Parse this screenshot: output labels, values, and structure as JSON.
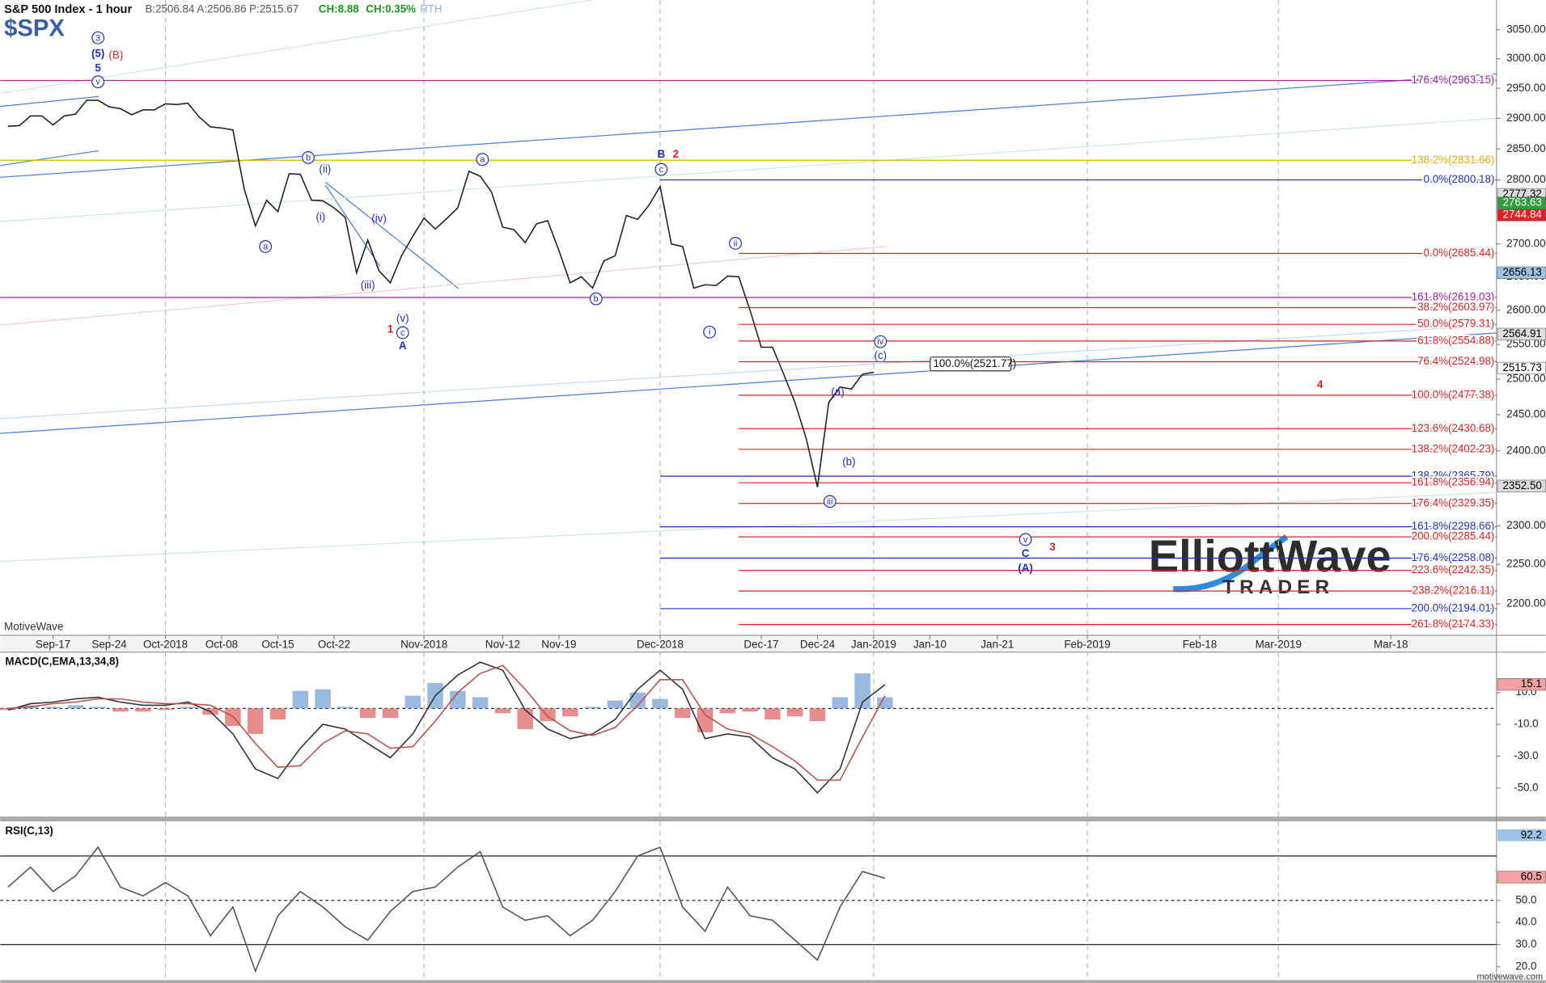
{
  "header": {
    "title": "S&P 500 Index - 1 hour",
    "quote": "B:2506.84 A:2506.86 P:2515.67",
    "change": "CH:8.88",
    "change_pct": "CH:0.35%",
    "session": "RTH",
    "symbol": "$SPX",
    "watermark": "MotiveWave",
    "logo_main": "ElliottWave",
    "logo_sub": "TRADER",
    "footer": "motivewave.com"
  },
  "chart_data": [
    {
      "type": "line",
      "log": true,
      "x": [
        -4,
        -3,
        -2,
        -1,
        0,
        1,
        2,
        3,
        4,
        5,
        6,
        7,
        8,
        9,
        10,
        11,
        12,
        13,
        14,
        15,
        16,
        17,
        18,
        19,
        20,
        21,
        22,
        23,
        24,
        25,
        26,
        27,
        28,
        29,
        30,
        31,
        32,
        33,
        34,
        35,
        36,
        37,
        38,
        39,
        40,
        41,
        42,
        43,
        44,
        45,
        46,
        47,
        48,
        49,
        50,
        51,
        52,
        53,
        54,
        55,
        56,
        57,
        58,
        59,
        60,
        61,
        62,
        63,
        64,
        65,
        66,
        67,
        68,
        69,
        70,
        71,
        72,
        73
      ],
      "series": [
        {
          "color": "#222222",
          "values": [
            2887,
            2888,
            2904,
            2904,
            2889,
            2904,
            2907,
            2930,
            2930,
            2919,
            2916,
            2906,
            2914,
            2914,
            2924,
            2923,
            2925,
            2902,
            2886,
            2884,
            2881,
            2786,
            2728,
            2768,
            2750,
            2810,
            2809,
            2768,
            2767,
            2756,
            2741,
            2656,
            2706,
            2659,
            2641,
            2682,
            2712,
            2740,
            2723,
            2739,
            2756,
            2814,
            2806,
            2781,
            2726,
            2722,
            2702,
            2731,
            2736,
            2690,
            2641,
            2650,
            2633,
            2674,
            2682,
            2744,
            2738,
            2760,
            2790,
            2700,
            2696,
            2633,
            2638,
            2637,
            2651,
            2650,
            2600,
            2546,
            2546,
            2507,
            2467,
            2417,
            2351,
            2467,
            2489,
            2486,
            2507,
            2510
          ]
        }
      ],
      "xlim": [
        -4.7,
        128.4
      ],
      "xticks": [
        {
          "value": 0,
          "label": "Sep-17"
        },
        {
          "value": 5,
          "label": "Sep-24"
        },
        {
          "value": 10,
          "label": "Oct-2018"
        },
        {
          "value": 15,
          "label": "Oct-08"
        },
        {
          "value": 20,
          "label": "Oct-15"
        },
        {
          "value": 25,
          "label": "Oct-22"
        },
        {
          "value": 33,
          "label": "Nov-2018"
        },
        {
          "value": 40,
          "label": "Nov-12"
        },
        {
          "value": 45,
          "label": "Nov-19"
        },
        {
          "value": 54,
          "label": "Dec-2018"
        },
        {
          "value": 63,
          "label": "Dec-17"
        },
        {
          "value": 68,
          "label": "Dec-24"
        },
        {
          "value": 73,
          "label": "Jan-2019"
        },
        {
          "value": 78,
          "label": "Jan-10"
        },
        {
          "value": 84,
          "label": "Jan-21"
        },
        {
          "value": 92,
          "label": "Feb-2019"
        },
        {
          "value": 102,
          "label": "Feb-18"
        },
        {
          "value": 109,
          "label": "Mar-2019"
        },
        {
          "value": 119,
          "label": "Mar-18"
        }
      ],
      "xgrid": [
        10,
        33,
        54,
        73,
        92,
        109
      ],
      "ylim": [
        2161,
        3102
      ],
      "yticks": [
        {
          "value": 2200,
          "label": "2200.00"
        },
        {
          "value": 2250,
          "label": "2250.00"
        },
        {
          "value": 2300,
          "label": "2300.00"
        },
        {
          "value": 2350,
          "label": "2350.00"
        },
        {
          "value": 2400,
          "label": "2400.00"
        },
        {
          "value": 2450,
          "label": "2450.00"
        },
        {
          "value": 2500,
          "label": "2500.00"
        },
        {
          "value": 2550,
          "label": "2550.00"
        },
        {
          "value": 2600,
          "label": "2600.00"
        },
        {
          "value": 2650,
          "label": "2650.00"
        },
        {
          "value": 2700,
          "label": "2700.00"
        },
        {
          "value": 2750,
          "label": "2750.00"
        },
        {
          "value": 2800,
          "label": "2800.00"
        },
        {
          "value": 2850,
          "label": "2850.00"
        },
        {
          "value": 2900,
          "label": "2900.00"
        },
        {
          "value": 2950,
          "label": "2950.00"
        },
        {
          "value": 3000,
          "label": "3000.00"
        },
        {
          "value": 3050,
          "label": "3050.00"
        }
      ],
      "levels": [
        {
          "label": "176.4%(2963.15)",
          "value": 2963.15,
          "color": "#a020a0"
        },
        {
          "label": "138.2%(2831.66)",
          "value": 2831.66,
          "color": "#e0b000"
        },
        {
          "label": "0.0%(2800.18)",
          "value": 2800.18,
          "color": "#1f2fc0",
          "x0": 54
        },
        {
          "label": "0.0%(2685.44)",
          "value": 2685.44,
          "color": "#e02020",
          "x0": 61
        },
        {
          "label": "161.8%(2619.03)",
          "value": 2619.03,
          "color": "#a020a0"
        },
        {
          "label": "38.2%(2603.97)",
          "value": 2603.97,
          "color": "#e02020",
          "x0": 61
        },
        {
          "label": "50.0%(2579.31)",
          "value": 2579.31,
          "color": "#e02020",
          "x0": 61
        },
        {
          "label": "61.8%(2554.88)",
          "value": 2554.88,
          "color": "#e02020",
          "x0": 61
        },
        {
          "label": "76.4%(2524.98)",
          "value": 2524.98,
          "color": "#e02020",
          "x0": 61
        },
        {
          "label": "100.0%(2477.38)",
          "value": 2477.38,
          "color": "#e02020",
          "x0": 61
        },
        {
          "label": "123.6%(2430.68)",
          "value": 2430.68,
          "color": "#e02020",
          "x0": 61
        },
        {
          "label": "138.2%(2402.23)",
          "value": 2402.23,
          "color": "#e02020",
          "x0": 61
        },
        {
          "label": "138.2%(2365.79)",
          "value": 2365.79,
          "color": "#1f2fc0",
          "x0": 54
        },
        {
          "label": "161.8%(2356.94)",
          "value": 2356.94,
          "color": "#e02020",
          "x0": 61
        },
        {
          "label": "176.4%(2329.35)",
          "value": 2329.35,
          "color": "#e02020",
          "x0": 61
        },
        {
          "label": "161.8%(2298.66)",
          "value": 2298.66,
          "color": "#1f2fc0",
          "x0": 54
        },
        {
          "label": "200.0%(2285.44)",
          "value": 2285.44,
          "color": "#e02020",
          "x0": 61
        },
        {
          "label": "176.4%(2258.08)",
          "value": 2258.08,
          "color": "#1f2fc0",
          "x0": 54
        },
        {
          "label": "223.6%(2242.35)",
          "value": 2242.35,
          "color": "#e02020",
          "x0": 61
        },
        {
          "label": "238.2%(2216.11)",
          "value": 2216.11,
          "color": "#e02020",
          "x0": 61
        },
        {
          "label": "200.0%(2194.01)",
          "value": 2194.01,
          "color": "#1f2fc0",
          "x0": 54
        },
        {
          "label": "261.8%(2174.33)",
          "value": 2174.33,
          "color": "#e02020",
          "x0": 61
        }
      ],
      "callout": {
        "label": "100.0%(2521.77)",
        "value": 2521.77,
        "x": 78.2
      },
      "annotations": [
        {
          "text": "3",
          "x": 4,
          "y": 3036,
          "color": "#1f2fc0",
          "circled": true
        },
        {
          "text": "(5)",
          "x": 4,
          "y": 3009,
          "color": "#1f2fc0",
          "bold": true
        },
        {
          "text": "(B)",
          "x": 5.6,
          "y": 3006,
          "color": "#e02020"
        },
        {
          "text": "5",
          "x": 4,
          "y": 2984,
          "color": "#1f2fc0",
          "bold": true
        },
        {
          "text": "v",
          "x": 4,
          "y": 2961,
          "color": "#1f2fc0",
          "circled": true
        },
        {
          "text": "a",
          "x": 18.9,
          "y": 2696,
          "color": "#1f2fc0",
          "circled": true
        },
        {
          "text": "b",
          "x": 22.7,
          "y": 2836,
          "color": "#1f2fc0",
          "circled": true
        },
        {
          "text": "(ii)",
          "x": 24.2,
          "y": 2817,
          "color": "#1f2fc0"
        },
        {
          "text": "(i)",
          "x": 23.8,
          "y": 2742,
          "color": "#1f2fc0"
        },
        {
          "text": "(iv)",
          "x": 29,
          "y": 2739,
          "color": "#1f2fc0"
        },
        {
          "text": "(iii)",
          "x": 28,
          "y": 2637,
          "color": "#1f2fc0"
        },
        {
          "text": "(v)",
          "x": 31.1,
          "y": 2588,
          "color": "#1f2fc0"
        },
        {
          "text": "c",
          "x": 31.1,
          "y": 2567,
          "color": "#1f2fc0",
          "circled": true
        },
        {
          "text": "A",
          "x": 31.1,
          "y": 2548,
          "color": "#1f2fc0",
          "bold": true
        },
        {
          "text": "1",
          "x": 30,
          "y": 2572,
          "color": "#e02020",
          "bold": true
        },
        {
          "text": "a",
          "x": 38.2,
          "y": 2833,
          "color": "#1f2fc0",
          "circled": true
        },
        {
          "text": "b",
          "x": 48.3,
          "y": 2617,
          "color": "#1f2fc0",
          "circled": true
        },
        {
          "text": "B",
          "x": 54.1,
          "y": 2841,
          "color": "#1f2fc0",
          "bold": true
        },
        {
          "text": "2",
          "x": 55.4,
          "y": 2841,
          "color": "#e02020",
          "bold": true
        },
        {
          "text": "c",
          "x": 54.1,
          "y": 2817,
          "color": "#1f2fc0",
          "circled": true
        },
        {
          "text": "ii",
          "x": 60.7,
          "y": 2701,
          "color": "#1f2fc0",
          "circled": true
        },
        {
          "text": "i",
          "x": 58.4,
          "y": 2568,
          "color": "#1f2fc0",
          "circled": true
        },
        {
          "text": "iv",
          "x": 73.6,
          "y": 2554,
          "color": "#1f2fc0",
          "circled": true
        },
        {
          "text": "(c)",
          "x": 73.6,
          "y": 2534,
          "color": "#1f2fc0"
        },
        {
          "text": "(a)",
          "x": 69.8,
          "y": 2482,
          "color": "#1f2fc0"
        },
        {
          "text": "(b)",
          "x": 70.8,
          "y": 2385,
          "color": "#1f2fc0"
        },
        {
          "text": "iii",
          "x": 69.1,
          "y": 2332,
          "color": "#1f2fc0",
          "circled": true
        },
        {
          "text": "4",
          "x": 112.7,
          "y": 2492,
          "color": "#e02020",
          "bold": true
        },
        {
          "text": "v",
          "x": 86.5,
          "y": 2282,
          "color": "#1f2fc0",
          "circled": true
        },
        {
          "text": "C",
          "x": 86.5,
          "y": 2264,
          "color": "#1f2fc0",
          "bold": true
        },
        {
          "text": "(A)",
          "x": 86.5,
          "y": 2245,
          "color": "#1f2fc0",
          "bold": true
        },
        {
          "text": "3",
          "x": 88.9,
          "y": 2272,
          "color": "#e02020",
          "bold": true
        }
      ],
      "markers": [
        {
          "value": 2777.32,
          "label": "2777.32",
          "color": "#dddddd",
          "text_color": "#000000"
        },
        {
          "value": 2763.63,
          "label": "2763.63",
          "color": "#2e9e3e",
          "text_color": "#ffffff"
        },
        {
          "value": 2744.84,
          "label": "2744.84",
          "color": "#e02020",
          "text_color": "#ffffff"
        },
        {
          "value": 2656.13,
          "label": "2656.13",
          "color": "#9cc3e6",
          "text_color": "#000000"
        },
        {
          "value": 2564.91,
          "label": "2564.91",
          "color": "#dddddd",
          "text_color": "#000000"
        },
        {
          "value": 2515.73,
          "label": "2515.73",
          "color": "#ffffff",
          "text_color": "#000000"
        },
        {
          "value": 2352.5,
          "label": "2352.50",
          "color": "#dddddd",
          "text_color": "#000000"
        }
      ]
    },
    {
      "type": "line",
      "title": "MACD(C,EMA,13,34,8)",
      "x": [
        -4,
        -2,
        0,
        2,
        4,
        6,
        8,
        10,
        12,
        14,
        16,
        18,
        20,
        22,
        24,
        26,
        28,
        30,
        32,
        34,
        36,
        38,
        40,
        42,
        44,
        46,
        48,
        50,
        52,
        54,
        56,
        58,
        60,
        62,
        64,
        66,
        68,
        70,
        72,
        74
      ],
      "series": [
        {
          "color": "#333333",
          "values": [
            -1,
            3,
            4,
            6,
            7,
            4,
            2,
            2,
            4,
            -2,
            -16,
            -38,
            -44,
            -25,
            -10,
            -13,
            -22,
            -31,
            -16,
            8,
            21,
            29,
            24,
            -1,
            -13,
            -19,
            -16,
            -7,
            12,
            24,
            12,
            -19,
            -16,
            -18,
            -31,
            -38,
            -53,
            -38,
            4,
            15
          ]
        },
        {
          "color": "#c0504d",
          "values": [
            0,
            1,
            3,
            4,
            6,
            6,
            4,
            3,
            3,
            2,
            -5,
            -22,
            -37,
            -36,
            -22,
            -14,
            -16,
            -25,
            -24,
            -8,
            10,
            22,
            27,
            12,
            -5,
            -14,
            -17,
            -12,
            2,
            18,
            18,
            -4,
            -13,
            -16,
            -24,
            -33,
            -45,
            -45,
            -18,
            8
          ]
        }
      ],
      "histogram": {
        "values": [
          -1,
          2,
          1,
          2,
          1,
          -2,
          -2,
          -1,
          1,
          -4,
          -11,
          -16,
          -7,
          11,
          12,
          1,
          -6,
          -6,
          8,
          16,
          11,
          7,
          -3,
          -13,
          -8,
          -5,
          1,
          5,
          10,
          6,
          -6,
          -15,
          -3,
          -2,
          -7,
          -5,
          -8,
          7,
          22,
          7
        ],
        "up_color": "#7fa8d8",
        "down_color": "#e07272"
      },
      "ylim": [
        -67.9,
        35.4
      ],
      "yticks": [
        {
          "value": 10,
          "label": "10.0"
        },
        {
          "value": -10,
          "label": "-10.0"
        },
        {
          "value": -30,
          "label": "-30.0"
        },
        {
          "value": -50,
          "label": "-50.0"
        }
      ],
      "reference_lines": [
        {
          "value": 0,
          "dashed": true
        }
      ],
      "markers": [
        {
          "value": 15.1,
          "label": "15.1",
          "color": "#f2a0a0",
          "text_color": "#000000"
        }
      ]
    },
    {
      "type": "line",
      "title": "RSI(C,13)",
      "x": [
        -4,
        -2,
        0,
        2,
        4,
        6,
        8,
        10,
        12,
        14,
        16,
        18,
        20,
        22,
        24,
        26,
        28,
        30,
        32,
        34,
        36,
        38,
        40,
        42,
        44,
        46,
        48,
        50,
        52,
        54,
        56,
        58,
        60,
        62,
        64,
        66,
        68,
        70,
        72,
        74
      ],
      "series": [
        {
          "color": "#555555",
          "values": [
            56,
            65,
            54,
            61,
            74,
            56,
            52,
            58,
            52,
            34,
            47,
            18,
            43,
            54,
            47,
            38,
            32,
            45,
            54,
            56,
            65,
            72,
            47,
            41,
            43,
            34,
            41,
            54,
            70,
            74,
            47,
            36,
            56,
            43,
            41,
            32,
            23,
            47,
            63,
            60
          ]
        }
      ],
      "ylim": [
        14,
        85.6
      ],
      "yticks": [
        {
          "value": 20,
          "label": "20.0"
        },
        {
          "value": 30,
          "label": "30.0"
        },
        {
          "value": 40,
          "label": "40.0"
        },
        {
          "value": 50,
          "label": "50.0"
        }
      ],
      "reference_lines": [
        {
          "value": 30,
          "dashed": false
        },
        {
          "value": 50,
          "dashed": true
        },
        {
          "value": 70,
          "dashed": false
        }
      ],
      "markers": [
        {
          "value": 60.5,
          "label": "60.5",
          "color": "#f2a0a0",
          "text_color": "#000000"
        }
      ],
      "overlay_marker": {
        "label": "92.2",
        "color": "#9cc3e6"
      }
    }
  ]
}
